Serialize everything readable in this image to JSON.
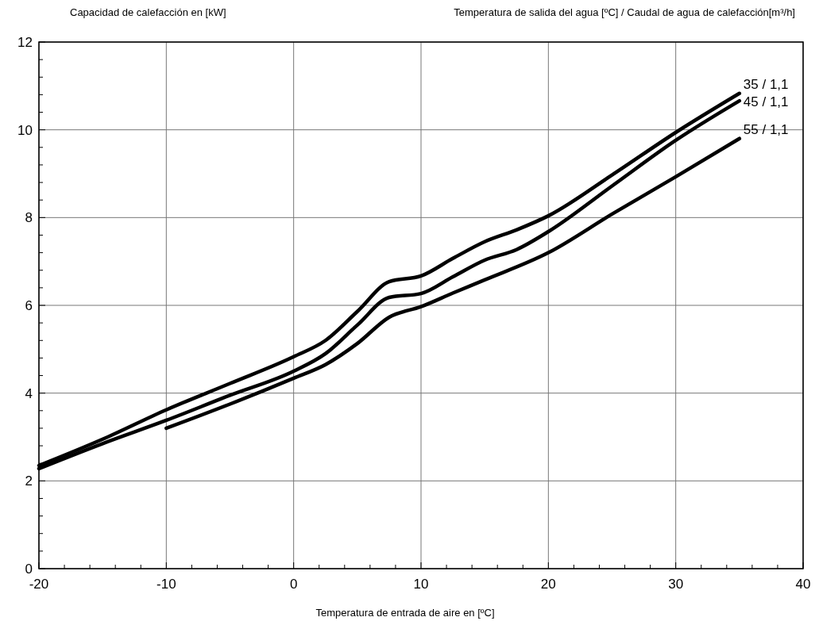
{
  "chart_data": {
    "type": "line",
    "ylabel": "Capacidad de calefacción en [kW]",
    "legend_title": "Temperatura de salida del agua [ºC] / Caudal de agua de calefacción[m³/h]",
    "xlabel": "Temperatura de entrada de aire en [ºC]",
    "xlim": [
      -20,
      40
    ],
    "ylim": [
      0,
      12
    ],
    "xticks": [
      -20,
      {
        "value": -18,
        "label": null
      },
      {
        "value": -16,
        "label": null
      },
      {
        "value": -14,
        "label": null
      },
      {
        "value": -12,
        "label": null
      },
      -10,
      {
        "value": -8,
        "label": null
      },
      {
        "value": -6,
        "label": null
      },
      {
        "value": -4,
        "label": null
      },
      {
        "value": -2,
        "label": null
      },
      0,
      {
        "value": 2,
        "label": null
      },
      {
        "value": 4,
        "label": null
      },
      {
        "value": 6,
        "label": null
      },
      {
        "value": 8,
        "label": null
      },
      10,
      {
        "value": 12,
        "label": null
      },
      {
        "value": 14,
        "label": null
      },
      {
        "value": 16,
        "label": null
      },
      {
        "value": 18,
        "label": null
      },
      20,
      {
        "value": 22,
        "label": null
      },
      {
        "value": 24,
        "label": null
      },
      {
        "value": 26,
        "label": null
      },
      {
        "value": 28,
        "label": null
      },
      30,
      {
        "value": 32,
        "label": null
      },
      {
        "value": 34,
        "label": null
      },
      {
        "value": 36,
        "label": null
      },
      {
        "value": 38,
        "label": null
      },
      40
    ],
    "yticks": [
      0,
      {
        "value": 0.4,
        "label": null
      },
      {
        "value": 0.8,
        "label": null
      },
      {
        "value": 1.2,
        "label": null
      },
      {
        "value": 1.6,
        "label": null
      },
      2,
      {
        "value": 2.4,
        "label": null
      },
      {
        "value": 2.8,
        "label": null
      },
      {
        "value": 3.2,
        "label": null
      },
      {
        "value": 3.6,
        "label": null
      },
      4,
      {
        "value": 4.4,
        "label": null
      },
      {
        "value": 4.8,
        "label": null
      },
      {
        "value": 5.2,
        "label": null
      },
      {
        "value": 5.6,
        "label": null
      },
      6,
      {
        "value": 6.4,
        "label": null
      },
      {
        "value": 6.8,
        "label": null
      },
      {
        "value": 7.2,
        "label": null
      },
      {
        "value": 7.6,
        "label": null
      },
      8,
      {
        "value": 8.4,
        "label": null
      },
      {
        "value": 8.8,
        "label": null
      },
      {
        "value": 9.2,
        "label": null
      },
      {
        "value": 9.6,
        "label": null
      },
      10,
      {
        "value": 10.4,
        "label": null
      },
      {
        "value": 10.8,
        "label": null
      },
      {
        "value": 11.2,
        "label": null
      },
      {
        "value": 11.6,
        "label": null
      },
      12
    ],
    "grid": true,
    "marker": "none",
    "line_style": "solid",
    "series": [
      {
        "name": "35 / 1,1",
        "color": "#000000",
        "x": [
          -20,
          -15,
          -10,
          -5,
          0,
          2.5,
          5,
          7.5,
          10,
          12.5,
          15,
          17.5,
          20,
          25,
          30,
          35
        ],
        "values": [
          2.35,
          2.95,
          3.62,
          4.22,
          4.83,
          5.2,
          5.86,
          6.54,
          6.67,
          7.07,
          7.45,
          7.72,
          8.04,
          8.97,
          9.94,
          10.83
        ]
      },
      {
        "name": "45 / 1,1",
        "color": "#000000",
        "x": [
          -20,
          -15,
          -10,
          -5,
          0,
          2.5,
          5,
          7.5,
          10,
          12.5,
          15,
          17.5,
          20,
          25,
          30,
          35
        ],
        "values": [
          2.28,
          2.85,
          3.38,
          3.95,
          4.5,
          4.9,
          5.55,
          6.18,
          6.27,
          6.65,
          7.03,
          7.27,
          7.68,
          8.72,
          9.76,
          10.66
        ]
      },
      {
        "name": "55 / 1,1",
        "color": "#000000",
        "x": [
          -10,
          -5,
          0,
          2.5,
          5,
          7.5,
          10,
          12.5,
          15,
          20,
          25,
          30,
          35
        ],
        "values": [
          3.2,
          3.75,
          4.34,
          4.65,
          5.13,
          5.73,
          5.97,
          6.28,
          6.58,
          7.2,
          8.08,
          8.93,
          9.8
        ]
      }
    ]
  }
}
